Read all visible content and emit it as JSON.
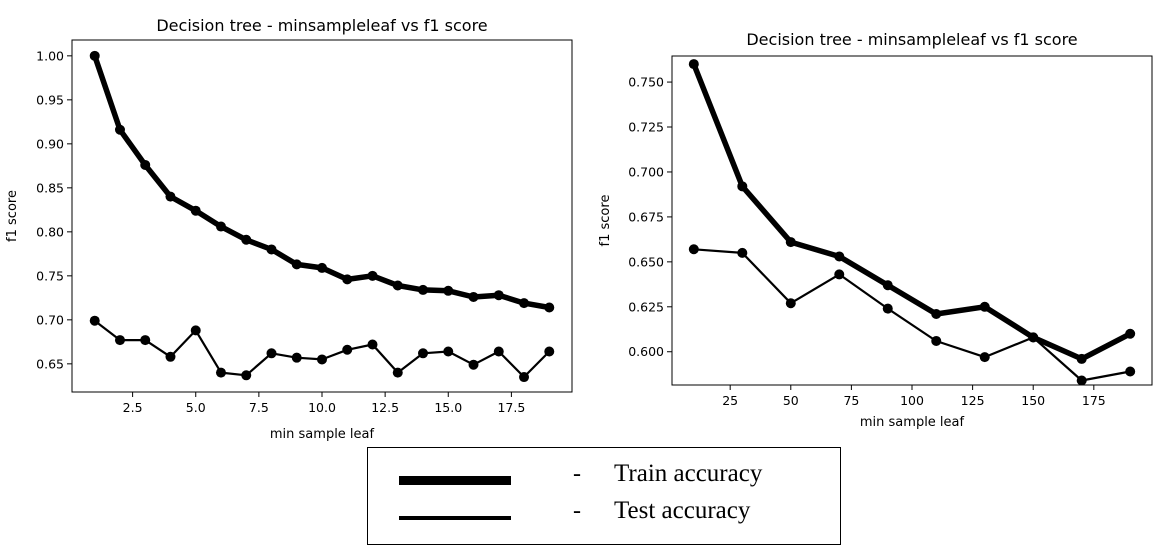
{
  "chart_data": [
    {
      "type": "line",
      "title": "Decision tree - minsampleleaf vs f1 score",
      "xlabel": "min sample leaf",
      "ylabel": "f1 score",
      "xlim": [
        0.1,
        19.9
      ],
      "ylim": [
        0.618,
        1.018
      ],
      "xticks": [
        2.5,
        5.0,
        7.5,
        10.0,
        12.5,
        15.0,
        17.5
      ],
      "xtick_labels": [
        "2.5",
        "5.0",
        "7.5",
        "10.0",
        "12.5",
        "15.0",
        "17.5"
      ],
      "yticks": [
        0.65,
        0.7,
        0.75,
        0.8,
        0.85,
        0.9,
        0.95,
        1.0
      ],
      "ytick_labels": [
        "0.65",
        "0.70",
        "0.75",
        "0.80",
        "0.85",
        "0.90",
        "0.95",
        "1.00"
      ],
      "x": [
        1,
        2,
        3,
        4,
        5,
        6,
        7,
        8,
        9,
        10,
        11,
        12,
        13,
        14,
        15,
        16,
        17,
        18,
        19
      ],
      "series": [
        {
          "role": "train",
          "line": "thick",
          "values": [
            1.0,
            0.916,
            0.876,
            0.84,
            0.824,
            0.806,
            0.791,
            0.78,
            0.763,
            0.759,
            0.746,
            0.75,
            0.739,
            0.734,
            0.733,
            0.726,
            0.728,
            0.719,
            0.714
          ]
        },
        {
          "role": "test",
          "line": "thin",
          "values": [
            0.699,
            0.677,
            0.677,
            0.658,
            0.688,
            0.64,
            0.637,
            0.662,
            0.657,
            0.655,
            0.666,
            0.672,
            0.64,
            0.662,
            0.664,
            0.649,
            0.664,
            0.635,
            0.664
          ]
        }
      ]
    },
    {
      "type": "line",
      "title": "Decision tree - minsampleleaf vs f1 score",
      "xlabel": "min sample leaf",
      "ylabel": "f1 score",
      "xlim": [
        1,
        199
      ],
      "ylim": [
        0.5815,
        0.7645
      ],
      "xticks": [
        25,
        50,
        75,
        100,
        125,
        150,
        175
      ],
      "xtick_labels": [
        "25",
        "50",
        "75",
        "100",
        "125",
        "150",
        "175"
      ],
      "yticks": [
        0.6,
        0.625,
        0.65,
        0.675,
        0.7,
        0.725,
        0.75
      ],
      "ytick_labels": [
        "0.600",
        "0.625",
        "0.650",
        "0.675",
        "0.700",
        "0.725",
        "0.750"
      ],
      "x": [
        10,
        30,
        50,
        70,
        90,
        110,
        130,
        150,
        170,
        190
      ],
      "series": [
        {
          "role": "train",
          "line": "thick",
          "values": [
            0.76,
            0.692,
            0.661,
            0.653,
            0.637,
            0.621,
            0.625,
            0.608,
            0.596,
            0.61
          ]
        },
        {
          "role": "test",
          "line": "thin",
          "values": [
            0.657,
            0.655,
            0.627,
            0.643,
            0.624,
            0.606,
            0.597,
            0.608,
            0.584,
            0.589
          ]
        }
      ]
    }
  ],
  "legend": {
    "dash": "-",
    "items": [
      {
        "label": "Train accuracy",
        "line": "thick"
      },
      {
        "label": "Test accuracy",
        "line": "thin"
      }
    ]
  }
}
